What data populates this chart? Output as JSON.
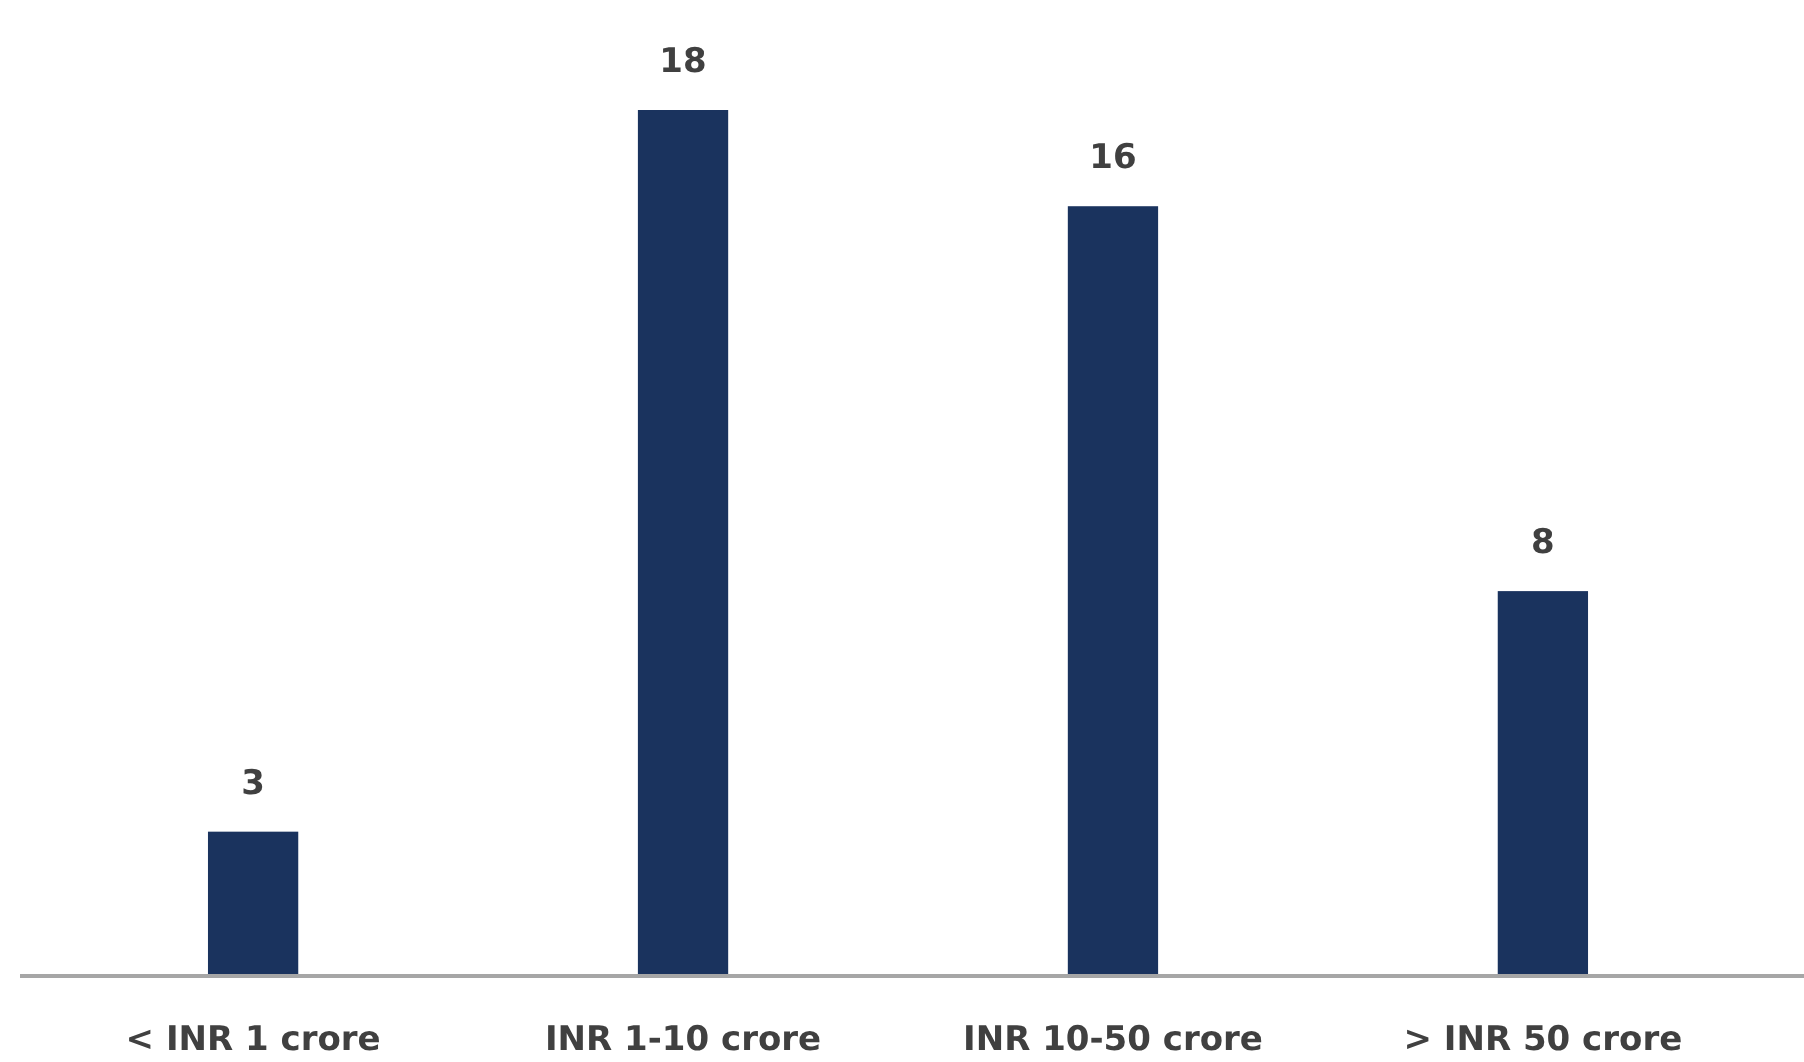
{
  "chart_data": {
    "type": "bar",
    "categories": [
      "< INR 1 crore",
      "INR 1-10 crore",
      "INR 10-50 crore",
      "> INR 50 crore"
    ],
    "values": [
      3,
      18,
      16,
      8
    ],
    "color": "#1a335e",
    "data_labels": true
  }
}
